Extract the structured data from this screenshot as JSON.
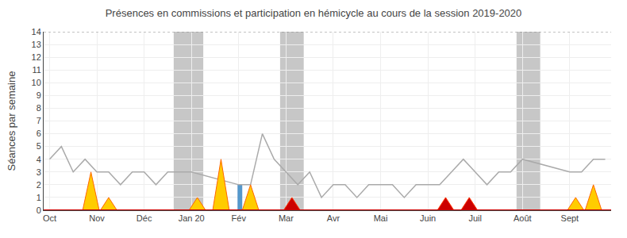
{
  "chart_data": {
    "type": "line",
    "title": "Présences en commissions et participation en hémicycle au cours de la session 2019-2020",
    "ylabel": "Séances par semaine",
    "xlim": [
      -0.5,
      47.5
    ],
    "xticks": [
      {
        "value": 0,
        "label": "Oct"
      },
      {
        "value": 4,
        "label": "Nov"
      },
      {
        "value": 8,
        "label": "Déc"
      },
      {
        "value": 12,
        "label": "Jan 20"
      },
      {
        "value": 16,
        "label": "Fév"
      },
      {
        "value": 20,
        "label": "Mar"
      },
      {
        "value": 24,
        "label": "Avr"
      },
      {
        "value": 28,
        "label": "Mai"
      },
      {
        "value": 32,
        "label": "Juin"
      },
      {
        "value": 36,
        "label": "Juil"
      },
      {
        "value": 40,
        "label": "Août"
      },
      {
        "value": 44,
        "label": "Sept"
      }
    ],
    "ylim": [
      0,
      14
    ],
    "yticks": [
      0,
      1,
      2,
      3,
      4,
      5,
      6,
      7,
      8,
      9,
      10,
      11,
      12,
      13,
      14
    ],
    "grid": true,
    "series": [
      {
        "type": "band",
        "color": "#999999",
        "ranges": [
          [
            10.5,
            13.0
          ],
          [
            19.5,
            21.5
          ],
          [
            39.5,
            41.5
          ]
        ]
      },
      {
        "type": "line",
        "color": "#aaaaaa",
        "x": [
          0,
          1,
          2,
          3,
          4,
          5,
          6,
          7,
          8,
          9,
          10,
          11,
          12,
          16,
          17,
          18,
          19,
          20,
          21,
          22,
          23,
          24,
          25,
          26,
          27,
          28,
          29,
          30,
          31,
          32,
          33,
          34,
          35,
          36,
          37,
          38,
          39,
          40,
          44,
          45,
          46,
          47
        ],
        "values": [
          4,
          5,
          3,
          4,
          3,
          3,
          2,
          3,
          3,
          2,
          3,
          3,
          3,
          2,
          2,
          6,
          4,
          3,
          2,
          3,
          1,
          2,
          2,
          1,
          2,
          2,
          2,
          1,
          2,
          2,
          2,
          3,
          4,
          3,
          2,
          3,
          3,
          4,
          3,
          3,
          4,
          4
        ]
      },
      {
        "type": "triangle",
        "color": "#ffcc00",
        "x": [
          3.5,
          5.0,
          12.5,
          14.5,
          17.0,
          44.5,
          46.0
        ],
        "values": [
          3.0,
          1.0,
          1.0,
          4.0,
          2.0,
          1.0,
          2.0
        ]
      },
      {
        "type": "triangle",
        "color": "#cc0000",
        "x": [
          20.5,
          33.5,
          35.5
        ],
        "values": [
          1.0,
          1.0,
          1.0
        ]
      },
      {
        "type": "bar",
        "color": "#5599cc",
        "x": [
          16.1
        ],
        "values": [
          2.0
        ]
      },
      {
        "type": "hline",
        "color": "#888888",
        "line_style": "dotted",
        "values": [
          14
        ]
      },
      {
        "type": "hline",
        "color": "#cc0000",
        "line_style": "solid",
        "values": [
          0
        ]
      }
    ]
  }
}
